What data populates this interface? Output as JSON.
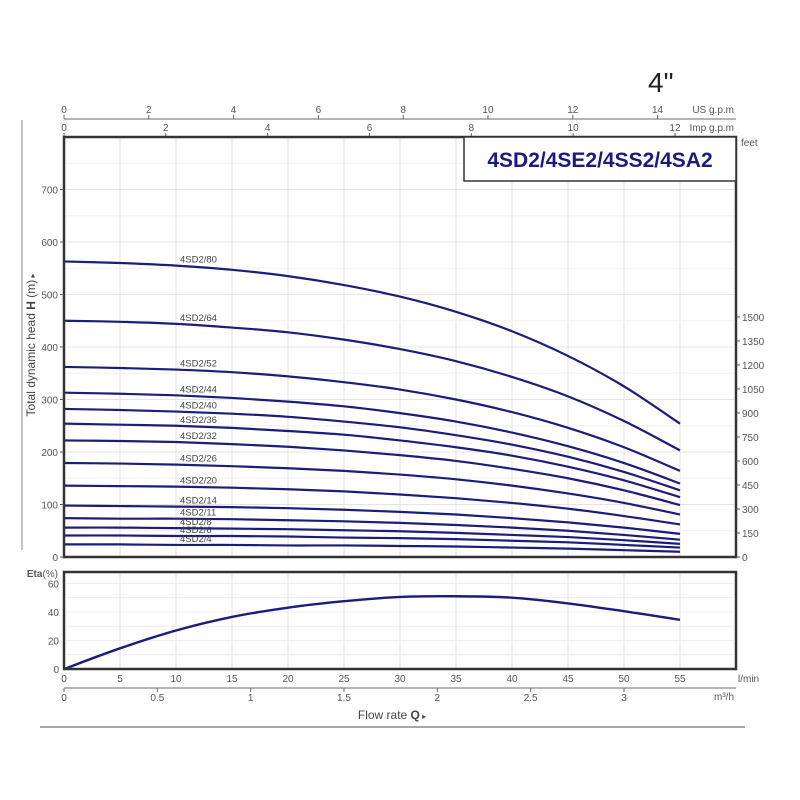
{
  "header": {
    "size_label": "4\"",
    "model_title": "4SD2/4SE2/4SS2/4SA2"
  },
  "colors": {
    "curve": "#1c1c7a",
    "frame": "#333333",
    "grid": "#e2e2e2",
    "title": "#1a1a80"
  },
  "chart_data": [
    {
      "type": "line",
      "title": "4SD2/4SE2/4SS2/4SA2",
      "xlabel": "Flow rate Q",
      "ylabel": "Total dynamic head H (m)",
      "xlim": [
        0,
        60
      ],
      "ylim": [
        0,
        800
      ],
      "grid": true,
      "x_unit": "l/min",
      "y_ticks": [
        0,
        100,
        200,
        300,
        400,
        500,
        600,
        700
      ],
      "y2_label": "feet",
      "y2_ticks": [
        0,
        150,
        300,
        450,
        600,
        750,
        900,
        1050,
        1200,
        1350,
        1500
      ],
      "top_axes": [
        {
          "label": "US g.p.m",
          "ticks": [
            0,
            2,
            4,
            6,
            8,
            10,
            12,
            14
          ]
        },
        {
          "label": "Imp g.p.m",
          "ticks": [
            0,
            2,
            4,
            6,
            8,
            10,
            12
          ]
        }
      ],
      "x": [
        0,
        5,
        10,
        15,
        20,
        25,
        30,
        35,
        40,
        45,
        50,
        55
      ],
      "series": [
        {
          "name": "4SD2/80",
          "values": [
            563,
            560,
            555,
            547,
            535,
            518,
            496,
            467,
            430,
            383,
            325,
            254
          ]
        },
        {
          "name": "4SD2/64",
          "values": [
            450,
            448,
            444,
            437,
            428,
            414,
            396,
            373,
            343,
            306,
            259,
            203
          ]
        },
        {
          "name": "4SD2/52",
          "values": [
            362,
            360,
            357,
            352,
            344,
            333,
            319,
            300,
            276,
            246,
            209,
            164
          ]
        },
        {
          "name": "4SD2/44",
          "values": [
            313,
            311,
            308,
            303,
            296,
            287,
            274,
            258,
            237,
            211,
            179,
            140
          ]
        },
        {
          "name": "4SD2/40",
          "values": [
            282,
            280,
            277,
            273,
            267,
            258,
            247,
            232,
            214,
            191,
            162,
            127
          ]
        },
        {
          "name": "4SD2/36",
          "values": [
            254,
            252,
            250,
            246,
            240,
            233,
            222,
            209,
            193,
            172,
            146,
            114
          ]
        },
        {
          "name": "4SD2/32",
          "values": [
            222,
            221,
            219,
            215,
            210,
            203,
            194,
            183,
            168,
            150,
            127,
            99
          ]
        },
        {
          "name": "4SD2/26",
          "values": [
            179,
            178,
            176,
            173,
            169,
            164,
            157,
            148,
            136,
            121,
            103,
            81
          ]
        },
        {
          "name": "4SD2/20",
          "values": [
            136,
            135,
            134,
            132,
            129,
            125,
            119,
            112,
            103,
            92,
            78,
            62
          ]
        },
        {
          "name": "4SD2/14",
          "values": [
            98,
            97,
            96,
            95,
            93,
            90,
            86,
            81,
            74,
            66,
            56,
            44
          ]
        },
        {
          "name": "4SD2/11",
          "values": [
            74,
            73,
            73,
            72,
            70,
            68,
            65,
            61,
            56,
            50,
            42,
            33
          ]
        },
        {
          "name": "4SD2/8",
          "values": [
            56,
            56,
            55,
            54,
            53,
            51,
            49,
            46,
            42,
            38,
            32,
            25
          ]
        },
        {
          "name": "4SD2/6",
          "values": [
            41,
            41,
            40,
            40,
            39,
            37,
            36,
            34,
            31,
            28,
            23,
            18
          ]
        },
        {
          "name": "4SD2/4",
          "values": [
            24,
            24,
            23,
            23,
            22,
            22,
            21,
            20,
            18,
            16,
            13,
            10
          ]
        }
      ]
    },
    {
      "type": "line",
      "title": "",
      "xlabel": "Flow rate Q",
      "ylabel": "Eta(%)",
      "xlim": [
        0,
        60
      ],
      "ylim": [
        0,
        68
      ],
      "grid": true,
      "y_ticks": [
        0,
        20,
        40,
        60
      ],
      "x_ticks_lmin": [
        0,
        5,
        10,
        15,
        20,
        25,
        30,
        35,
        40,
        45,
        50,
        55
      ],
      "x_unit_lmin": "l/min",
      "x_ticks_m3h": [
        "0",
        "0.5",
        "1",
        "1.5",
        "2",
        "2.5",
        "3"
      ],
      "x_unit_m3h": "m³/h",
      "x": [
        0,
        5,
        10,
        15,
        20,
        25,
        30,
        35,
        40,
        45,
        50,
        55
      ],
      "series": [
        {
          "name": "Eta",
          "values": [
            0,
            14.5,
            27,
            36.5,
            43,
            47.5,
            50.5,
            51,
            50,
            46,
            40.5,
            34.5
          ]
        }
      ]
    }
  ],
  "axis_titles": {
    "y_prefix": "Total dynamic head ",
    "y_bold": "H",
    "y_suffix": " (m)",
    "eta_bold": "Eta",
    "eta_suffix": "(%)",
    "x_prefix": "Flow  rate  ",
    "x_bold": "Q",
    "feet": "feet",
    "lmin": "l/min",
    "m3h": "m³/h",
    "us_gpm": "US g.p.m",
    "imp_gpm": "Imp g.p.m"
  }
}
